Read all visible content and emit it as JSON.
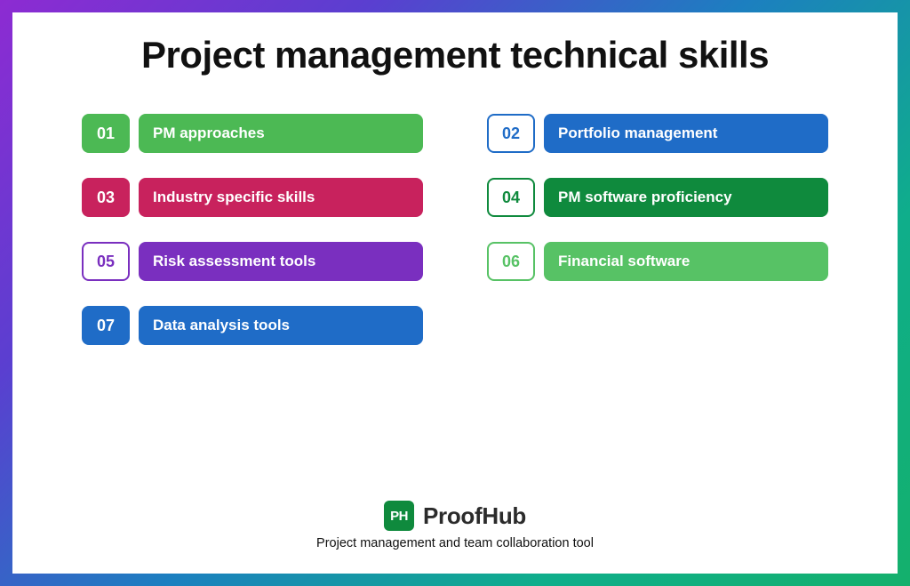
{
  "title": "Project management technical skills",
  "title_fontsize": 42,
  "title_color": "#111111",
  "gradient_colors": [
    "#8d2bd2",
    "#5a3fd0",
    "#1c7fc0",
    "#0fae8b",
    "#14b06c"
  ],
  "background_color": "#ffffff",
  "items": [
    {
      "num": "01",
      "label": "PM approaches",
      "badge_bg": "#4cb954",
      "badge_fg": "#ffffff",
      "bar_bg": "#4cb954"
    },
    {
      "num": "02",
      "label": "Portfolio management",
      "badge_bg": "#ffffff",
      "badge_fg": "#1f6cc7",
      "bar_bg": "#1f6cc7",
      "badge_border": "#1f6cc7"
    },
    {
      "num": "03",
      "label": "Industry specific skills",
      "badge_bg": "#c8225d",
      "badge_fg": "#ffffff",
      "bar_bg": "#c8225d"
    },
    {
      "num": "04",
      "label": "PM software proficiency",
      "badge_bg": "#ffffff",
      "badge_fg": "#0f8a3d",
      "bar_bg": "#0f8a3d",
      "badge_border": "#0f8a3d"
    },
    {
      "num": "05",
      "label": "Risk assessment tools",
      "badge_bg": "#ffffff",
      "badge_fg": "#7a2fbf",
      "bar_bg": "#7a2fbf",
      "badge_border": "#7a2fbf"
    },
    {
      "num": "06",
      "label": "Financial software",
      "badge_bg": "#ffffff",
      "badge_fg": "#57c265",
      "bar_bg": "#57c265",
      "badge_border": "#57c265"
    },
    {
      "num": "07",
      "label": "Data analysis tools",
      "badge_bg": "#1f6cc7",
      "badge_fg": "#ffffff",
      "bar_bg": "#1f6cc7"
    }
  ],
  "brand": {
    "logo_text": "PH",
    "logo_bg": "#0f8a3d",
    "name": "ProofHub",
    "name_color": "#2b2b2b",
    "tagline": "Project management and team collaboration tool",
    "tagline_color": "#111111"
  }
}
